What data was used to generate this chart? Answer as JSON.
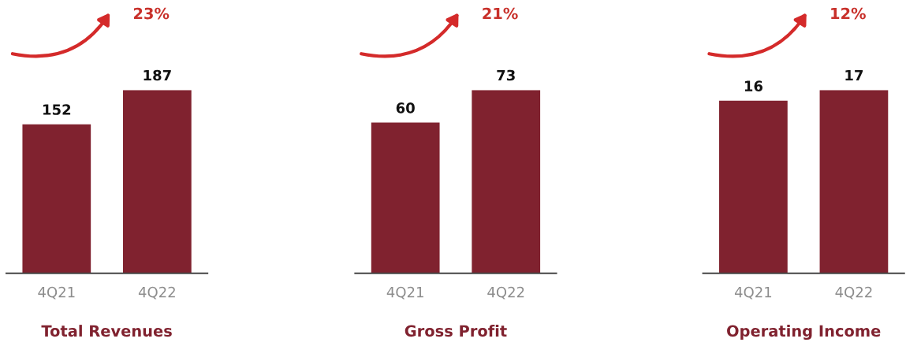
{
  "chart_data": [
    {
      "type": "bar",
      "title": "Total Revenues",
      "categories": [
        "4Q21",
        "4Q22"
      ],
      "values": [
        152,
        187
      ],
      "color": "#80222f",
      "data_labels": true,
      "tick_labels": "x",
      "annotations": [
        "23%"
      ]
    },
    {
      "type": "bar",
      "title": "Gross Profit",
      "categories": [
        "4Q21",
        "4Q22"
      ],
      "values": [
        60,
        73
      ],
      "color": "#80222f",
      "data_labels": true,
      "tick_labels": "x",
      "annotations": [
        "21%"
      ]
    },
    {
      "type": "bar",
      "title": "Operating Income",
      "categories": [
        "4Q21",
        "4Q22"
      ],
      "values": [
        16,
        17
      ],
      "color": "#80222f",
      "data_labels": true,
      "tick_labels": "x",
      "annotations": [
        "12%"
      ]
    }
  ]
}
